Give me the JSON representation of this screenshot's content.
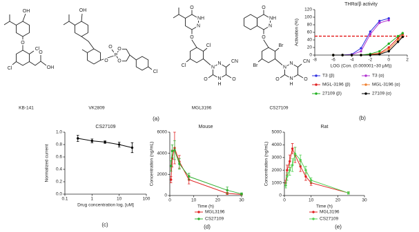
{
  "structures": {
    "label": "(a)",
    "compounds": [
      {
        "name": "KB-141",
        "atoms": [
          "OH",
          "O",
          "Cl",
          "Cl",
          "O",
          "OH"
        ]
      },
      {
        "name": "VK2809",
        "atoms": [
          "OH",
          "O",
          "P",
          "O",
          "O",
          "O",
          "Cl"
        ]
      },
      {
        "name": "MGL3196",
        "atoms": [
          "O",
          "NH",
          "N",
          "O",
          "Cl",
          "Cl",
          "N",
          "N",
          "CN",
          "N",
          "H",
          "O",
          "O"
        ]
      },
      {
        "name": "CS27109",
        "atoms": [
          "O",
          "NH",
          "N",
          "O",
          "Br",
          "Br",
          "N",
          "N",
          "CN",
          "N",
          "H",
          "O",
          "O"
        ]
      }
    ]
  },
  "chart_data": [
    {
      "type": "line",
      "panel": "(b)",
      "title": "THRα/β activity",
      "xlabel": "LOG (Con. (0.000001~30 μM))",
      "ylabel": "Activation (%)",
      "xlim": [
        -8,
        2
      ],
      "xticks": [
        -8,
        -6,
        -4,
        -2,
        0,
        2
      ],
      "ylim": [
        0,
        120
      ],
      "yticks": [
        0,
        20,
        40,
        60,
        80,
        100,
        120
      ],
      "hline": {
        "value": 50,
        "color": "#e00000"
      },
      "x": [
        -6,
        -5,
        -4,
        -3,
        -2,
        -1,
        0,
        1,
        1.5
      ],
      "series": [
        {
          "name": "T3 (β)",
          "color": "#3030e0",
          "values": [
            0,
            0,
            2,
            18,
            62,
            90,
            97,
            null,
            null
          ]
        },
        {
          "name": "T3 (α)",
          "color": "#b030d0",
          "values": [
            0,
            0,
            1,
            10,
            55,
            85,
            92,
            null,
            null
          ]
        },
        {
          "name": "MGL-3196 (β)",
          "color": "#e02020",
          "values": [
            0,
            0,
            0,
            0,
            2,
            5,
            20,
            45,
            55
          ]
        },
        {
          "name": "MGL-3196 (α)",
          "color": "#f08030",
          "values": [
            0,
            0,
            0,
            0,
            1,
            4,
            15,
            40,
            50
          ]
        },
        {
          "name": "27109 (β)",
          "color": "#20b020",
          "values": [
            0,
            0,
            0,
            0,
            3,
            10,
            30,
            50,
            58
          ]
        },
        {
          "name": "27109 (α)",
          "color": "#000000",
          "values": [
            0,
            0,
            0,
            0,
            0,
            2,
            10,
            35,
            48
          ]
        }
      ]
    },
    {
      "type": "line",
      "panel": "(c)",
      "title": "CS27109",
      "xlabel": "Drug concentration log. [uM]",
      "ylabel": "Normalized current",
      "xscale": "log",
      "xlim": [
        0.1,
        100
      ],
      "xticks": [
        0.1,
        1,
        10,
        100
      ],
      "ylim": [
        0,
        1
      ],
      "yticks": [
        {
          "value": 0,
          "label": "0.0"
        },
        0.2,
        0.4,
        0.6,
        0.8,
        {
          "value": 1,
          "label": "1.0"
        }
      ],
      "x": [
        0.3,
        1,
        3,
        10,
        30
      ],
      "series": [
        {
          "color": "#000000",
          "values": [
            0.9,
            0.86,
            0.84,
            0.8,
            0.75
          ],
          "errors": [
            0.05,
            0.03,
            0.02,
            0.04,
            0.08
          ]
        }
      ]
    },
    {
      "type": "line",
      "panel": "(d)",
      "title": "Mouse",
      "xlabel": "Time (h)",
      "ylabel": "Concentration (ng/mL)",
      "xlim": [
        0,
        30
      ],
      "xticks": [
        0,
        10,
        20,
        30
      ],
      "ylim": [
        0,
        6000
      ],
      "yticks": [
        0,
        2000,
        4000,
        6000
      ],
      "x": [
        0.5,
        1,
        2,
        4,
        8,
        24,
        30
      ],
      "series": [
        {
          "name": "MGL3196",
          "color": "#e02020",
          "values": [
            1500,
            3500,
            4500,
            3200,
            1500,
            200,
            100
          ],
          "errors": [
            300,
            800,
            1500,
            600,
            400,
            100,
            50
          ]
        },
        {
          "name": "CS27109",
          "color": "#30b030",
          "values": [
            2800,
            4200,
            4300,
            3000,
            1800,
            500,
            150
          ],
          "errors": [
            500,
            600,
            900,
            500,
            300,
            300,
            100
          ]
        }
      ]
    },
    {
      "type": "line",
      "panel": "(e)",
      "title": "Rat",
      "xlabel": "Time (h)",
      "ylabel": "Concentration (ng/mL)",
      "xlim": [
        0,
        30
      ],
      "xticks": [
        0,
        10,
        20,
        30
      ],
      "ylim": [
        0,
        5000
      ],
      "yticks": [
        0,
        1000,
        2000,
        3000,
        4000,
        5000
      ],
      "x": [
        0.5,
        1,
        2,
        3,
        4,
        6,
        8,
        10,
        24
      ],
      "series": [
        {
          "name": "MGL3196",
          "color": "#e02020",
          "values": [
            1000,
            2000,
            2700,
            3700,
            3200,
            2300,
            1500,
            1000,
            200
          ],
          "errors": [
            200,
            400,
            500,
            400,
            600,
            400,
            300,
            200,
            100
          ]
        },
        {
          "name": "CS27109",
          "color": "#50d050",
          "values": [
            800,
            1500,
            2000,
            2400,
            3300,
            2800,
            2000,
            1200,
            200
          ],
          "errors": [
            200,
            300,
            400,
            500,
            500,
            400,
            300,
            200,
            100
          ]
        }
      ]
    }
  ]
}
